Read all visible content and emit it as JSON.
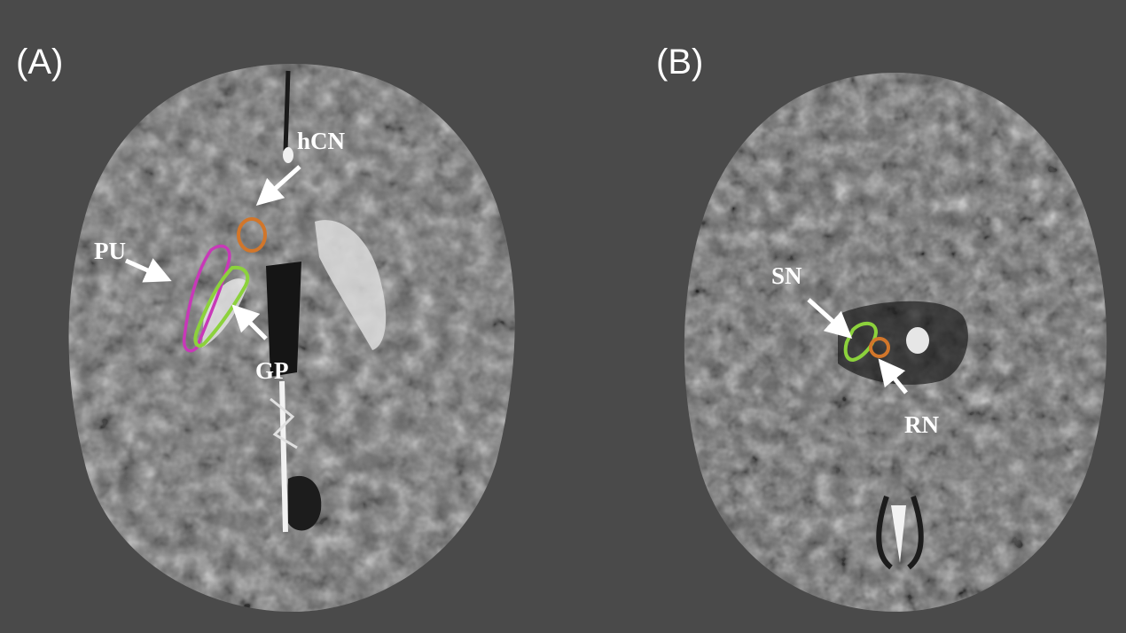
{
  "panels": [
    {
      "label": "(A)",
      "regions": [
        {
          "name": "hCN",
          "color": "#d2762a"
        },
        {
          "name": "PU",
          "color": "#c838b8"
        },
        {
          "name": "GP",
          "color": "#8cd23c"
        }
      ]
    },
    {
      "label": "(B)",
      "regions": [
        {
          "name": "SN",
          "color": "#8cd23c"
        },
        {
          "name": "RN",
          "color": "#d2762a"
        }
      ]
    }
  ],
  "colors": {
    "background": "#4a4a4a",
    "arrow": "#ffffff"
  }
}
